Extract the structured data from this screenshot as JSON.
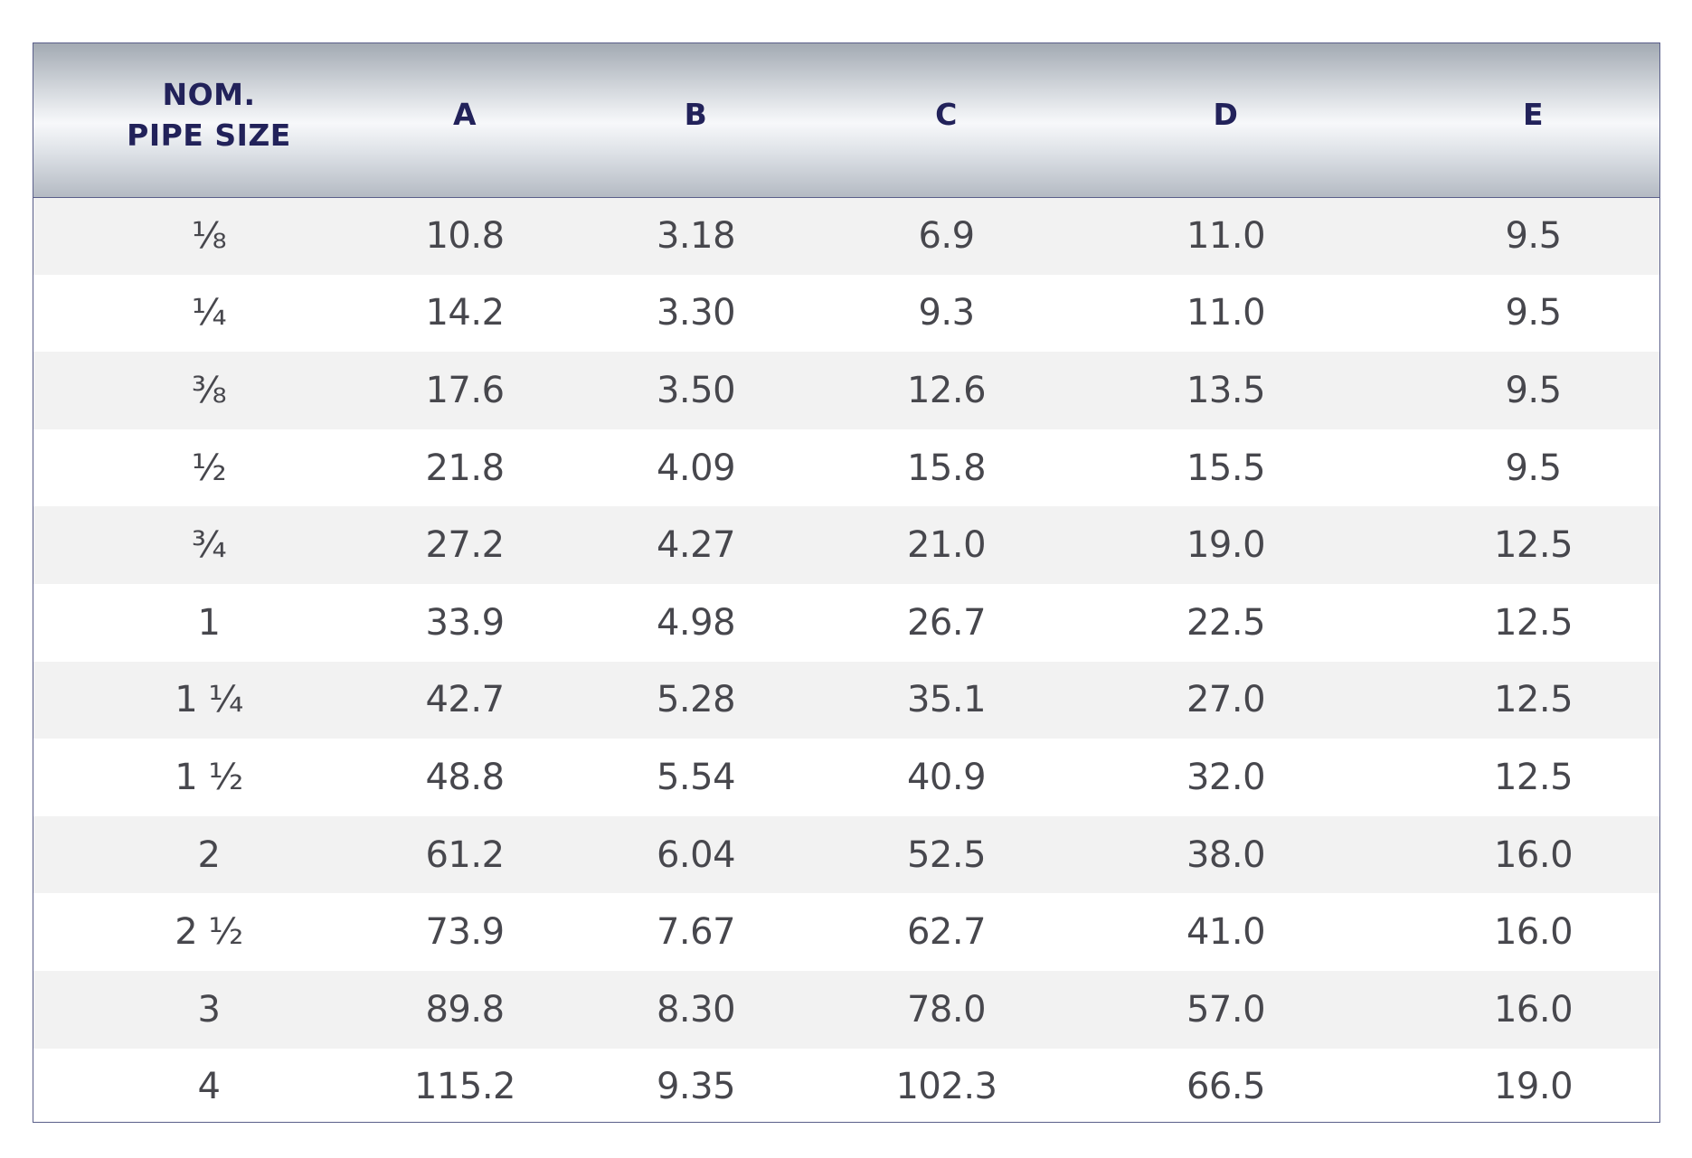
{
  "table": {
    "headers": {
      "size_line1": "NOM.",
      "size_line2": "PIPE SIZE",
      "a": "A",
      "b": "B",
      "c": "C",
      "d": "D",
      "e": "E"
    },
    "rows": [
      {
        "size": "⅛",
        "a": "10.8",
        "b": "3.18",
        "c": "6.9",
        "d": "11.0",
        "e": "9.5"
      },
      {
        "size": "¼",
        "a": "14.2",
        "b": "3.30",
        "c": "9.3",
        "d": "11.0",
        "e": "9.5"
      },
      {
        "size": "⅜",
        "a": "17.6",
        "b": "3.50",
        "c": "12.6",
        "d": "13.5",
        "e": "9.5"
      },
      {
        "size": "½",
        "a": "21.8",
        "b": "4.09",
        "c": "15.8",
        "d": "15.5",
        "e": "9.5"
      },
      {
        "size": "¾",
        "a": "27.2",
        "b": "4.27",
        "c": "21.0",
        "d": "19.0",
        "e": "12.5"
      },
      {
        "size": "1",
        "a": "33.9",
        "b": "4.98",
        "c": "26.7",
        "d": "22.5",
        "e": "12.5"
      },
      {
        "size": "1 ¼",
        "a": "42.7",
        "b": "5.28",
        "c": "35.1",
        "d": "27.0",
        "e": "12.5"
      },
      {
        "size": "1 ½",
        "a": "48.8",
        "b": "5.54",
        "c": "40.9",
        "d": "32.0",
        "e": "12.5"
      },
      {
        "size": "2",
        "a": "61.2",
        "b": "6.04",
        "c": "52.5",
        "d": "38.0",
        "e": "16.0"
      },
      {
        "size": "2 ½",
        "a": "73.9",
        "b": "7.67",
        "c": "62.7",
        "d": "41.0",
        "e": "16.0"
      },
      {
        "size": "3",
        "a": "89.8",
        "b": "8.30",
        "c": "78.0",
        "d": "57.0",
        "e": "16.0"
      },
      {
        "size": "4",
        "a": "115.2",
        "b": "9.35",
        "c": "102.3",
        "d": "66.5",
        "e": "19.0"
      }
    ]
  },
  "colors": {
    "header_text": "#22225a",
    "body_text": "#47474d",
    "row_stripe": "#f2f2f2",
    "border": "#5a5f8a"
  }
}
